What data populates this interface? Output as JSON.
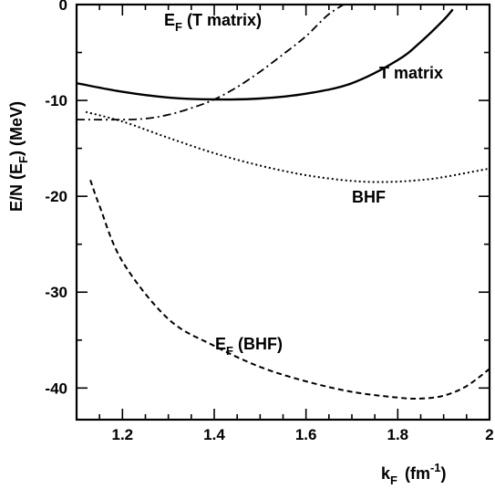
{
  "chart_data": {
    "type": "line",
    "xlabel": {
      "main": "k",
      "sub": "F",
      "unit_open": "(fm",
      "unit_sup": "-1",
      "unit_close": ")"
    },
    "ylabel": {
      "main": "E/N (E",
      "sub": "F",
      "rest": ")  (MeV)"
    },
    "xlim": [
      1.1,
      2.0
    ],
    "ylim": [
      -43.3,
      0
    ],
    "xticks": [
      1.2,
      1.4,
      1.6,
      1.8,
      2.0
    ],
    "xtick_labels": [
      "1.2",
      "1.4",
      "1.6",
      "1.8",
      "2"
    ],
    "yticks": [
      0,
      -10,
      -20,
      -30,
      -40
    ],
    "ytick_labels": [
      "0",
      "-10",
      "-20",
      "-30",
      "-40"
    ],
    "grid": false,
    "legend": "none",
    "series": [
      {
        "name": "T matrix",
        "style": "solid",
        "x": [
          1.1,
          1.2,
          1.3,
          1.4,
          1.5,
          1.6,
          1.7,
          1.8,
          1.85,
          1.9,
          1.92
        ],
        "y": [
          -8.2,
          -9.1,
          -9.7,
          -9.9,
          -9.8,
          -9.3,
          -8.2,
          -5.8,
          -3.9,
          -1.6,
          -0.5
        ]
      },
      {
        "name": "E_F (T matrix)",
        "style": "dashdot",
        "x": [
          1.1,
          1.2,
          1.25,
          1.3,
          1.35,
          1.4,
          1.45,
          1.5,
          1.55,
          1.6,
          1.65,
          1.7
        ],
        "y": [
          -12.0,
          -12.0,
          -11.9,
          -11.5,
          -10.8,
          -9.9,
          -8.6,
          -7.0,
          -5.2,
          -3.3,
          -1.0,
          0.5
        ]
      },
      {
        "name": "BHF",
        "style": "dotted",
        "x": [
          1.12,
          1.2,
          1.3,
          1.4,
          1.5,
          1.6,
          1.7,
          1.78,
          1.85,
          1.9,
          2.0
        ],
        "y": [
          -11.2,
          -12.2,
          -13.9,
          -15.5,
          -16.8,
          -17.8,
          -18.4,
          -18.5,
          -18.3,
          -18.0,
          -17.1
        ]
      },
      {
        "name": "E_F (BHF)",
        "style": "dashed",
        "x": [
          1.13,
          1.15,
          1.2,
          1.3,
          1.4,
          1.5,
          1.6,
          1.7,
          1.8,
          1.85,
          1.9,
          1.95,
          2.0
        ],
        "y": [
          -18.3,
          -21.0,
          -26.8,
          -32.8,
          -35.6,
          -37.8,
          -39.3,
          -40.4,
          -41.0,
          -41.1,
          -40.8,
          -39.8,
          -38.0
        ]
      }
    ],
    "labels": [
      {
        "text": "T matrix",
        "series": "T matrix"
      },
      {
        "text": "BHF",
        "series": "BHF"
      },
      {
        "text": "E",
        "sub": "F",
        "rest": " (T matrix)",
        "series": "E_F (T matrix)"
      },
      {
        "text": "E",
        "sub": "F",
        "rest": " (BHF)",
        "series": "E_F (BHF)"
      }
    ]
  }
}
